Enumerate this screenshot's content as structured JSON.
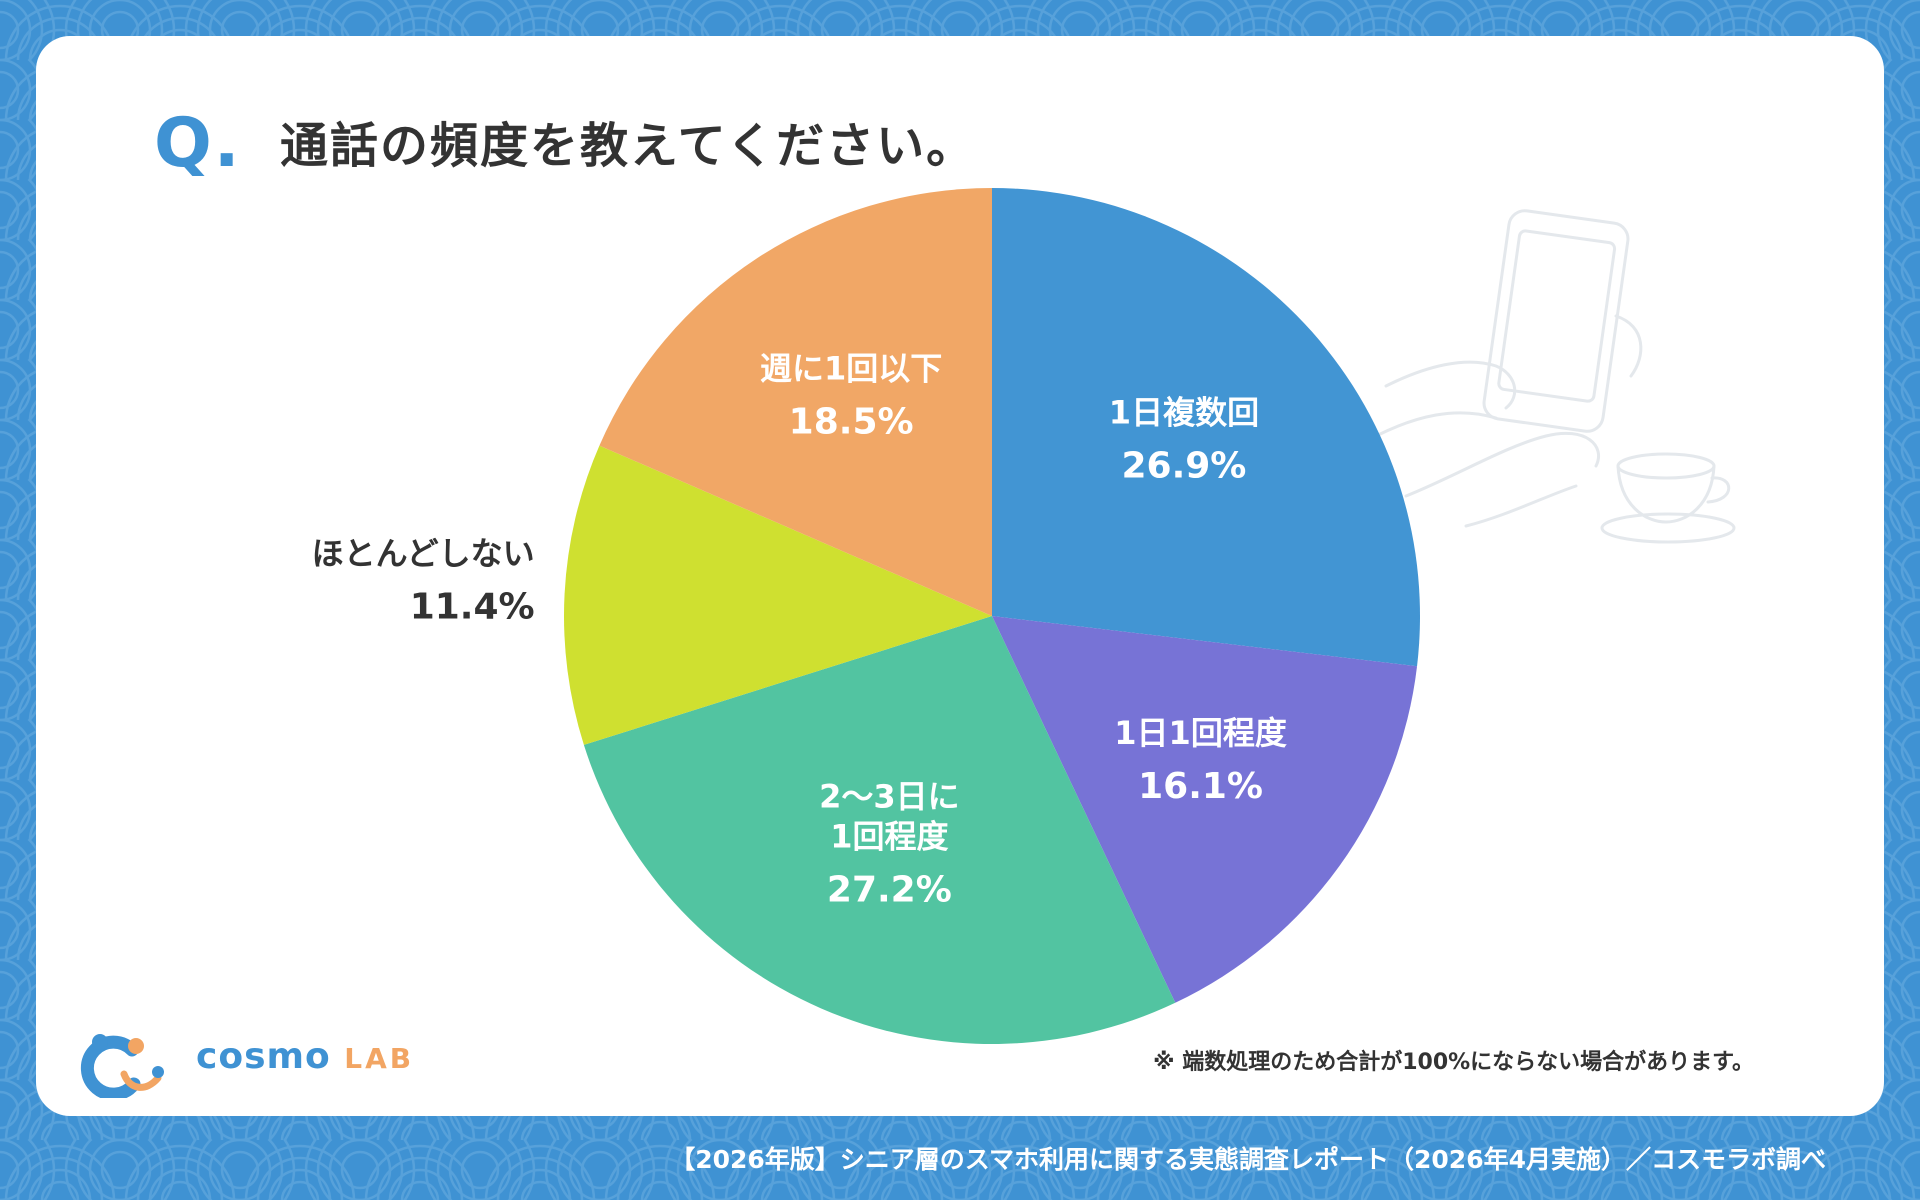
{
  "header": {
    "q_mark": "Q.",
    "question": "通話の頻度を教えてください。"
  },
  "chart_data": {
    "type": "pie",
    "title": "通話の頻度を教えてください。",
    "start_angle_deg": 0,
    "direction": "clockwise",
    "slices": [
      {
        "label_lines": [
          "1日複数回"
        ],
        "value": 26.9,
        "value_label": "26.9%",
        "color": "#4295d3",
        "label_color": "#ffffff"
      },
      {
        "label_lines": [
          "1日1回程度"
        ],
        "value": 16.1,
        "value_label": "16.1%",
        "color": "#7773d6",
        "label_color": "#ffffff"
      },
      {
        "label_lines": [
          "2～3日に",
          "1回程度"
        ],
        "value": 27.2,
        "value_label": "27.2%",
        "color": "#52c4a1",
        "label_color": "#ffffff"
      },
      {
        "label_lines": [
          "ほとんどしない"
        ],
        "value": 11.4,
        "value_label": "11.4%",
        "color": "#cfe030",
        "label_color": "#333333",
        "label_outside": true
      },
      {
        "label_lines": [
          "週に1回以下"
        ],
        "value": 18.5,
        "value_label": "18.5%",
        "color": "#f1a766",
        "label_color": "#ffffff"
      }
    ]
  },
  "note": "※ 端数処理のため合計が100%にならない場合があります。",
  "logo": {
    "name": "cosmo",
    "suffix": "LAB"
  },
  "footer": "【2026年版】シニア層のスマホ利用に関する実態調査レポート（2026年4月実施）／コスモラボ調べ",
  "colors": {
    "background": "#3f92d3",
    "card": "#ffffff",
    "accent": "#3f92d3",
    "text": "#333333"
  },
  "icons": [
    "wave-pattern",
    "phone-hand-illustration",
    "teacup-illustration",
    "cosmo-lab-logo-icon"
  ]
}
